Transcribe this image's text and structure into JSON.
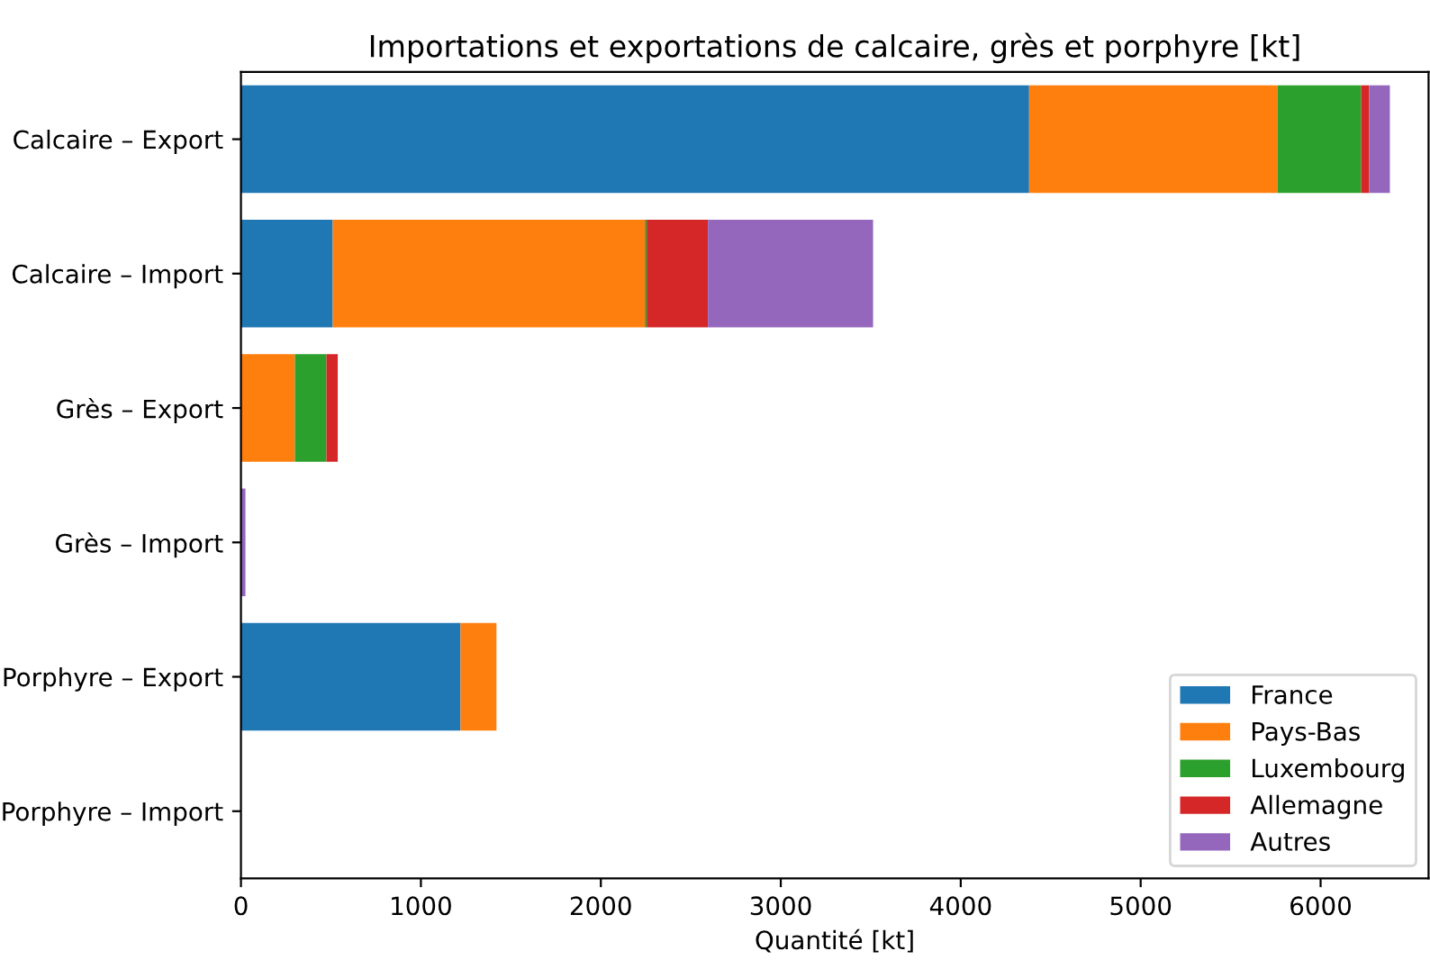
{
  "chart_data": {
    "type": "bar",
    "orientation": "horizontal",
    "stacked": true,
    "title": "Importations et exportations de calcaire, grès et porphyre [kt]",
    "xlabel": "Quantité [kt]",
    "categories": [
      "Calcaire – Export",
      "Calcaire – Import",
      "Grès – Export",
      "Grès – Import",
      "Porphyre – Export",
      "Porphyre – Import"
    ],
    "series": [
      {
        "name": "France",
        "color": "#1f77b4",
        "values": [
          4380,
          510,
          0,
          0,
          1220,
          0
        ]
      },
      {
        "name": "Pays-Bas",
        "color": "#ff7f0e",
        "values": [
          1380,
          1735,
          300,
          0,
          200,
          0
        ]
      },
      {
        "name": "Luxembourg",
        "color": "#2ca02c",
        "values": [
          465,
          10,
          175,
          0,
          0,
          0
        ]
      },
      {
        "name": "Allemagne",
        "color": "#d62728",
        "values": [
          45,
          340,
          63,
          0,
          0,
          0
        ]
      },
      {
        "name": "Autres",
        "color": "#9467bd",
        "values": [
          115,
          918,
          0,
          25,
          0,
          0
        ]
      }
    ],
    "xlim": [
      0,
      6600
    ],
    "xticks": [
      0,
      1000,
      2000,
      3000,
      4000,
      5000,
      6000
    ],
    "grid": false,
    "legend": "bottom right"
  }
}
